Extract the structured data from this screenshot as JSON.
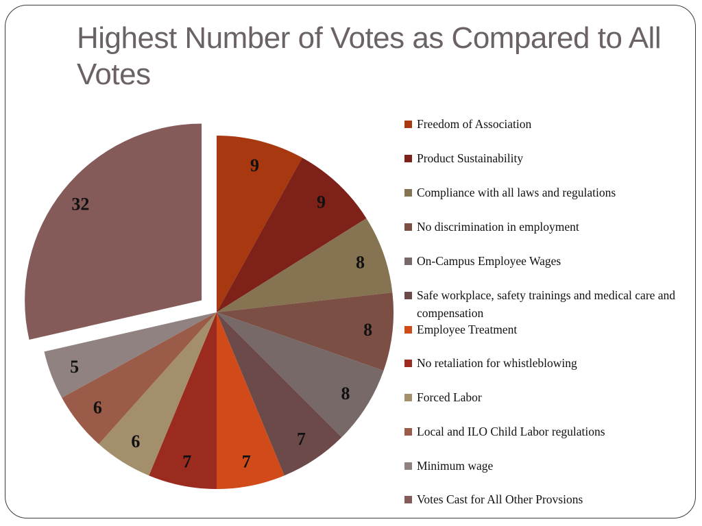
{
  "slide": {
    "title": "Highest Number of Votes as Compared to All Votes"
  },
  "chart_data": {
    "type": "pie",
    "title": "Highest Number of Votes as Compared to All Votes",
    "categories": [
      "Freedom of Association",
      "Product Sustainability",
      "Compliance with all laws and regulations",
      "No discrimination in employment",
      "On-Campus Employee Wages",
      "Safe workplace, safety trainings and medical care and compensation",
      "Employee Treatment",
      "No retaliation for whistleblowing",
      "Forced Labor",
      "Local and ILO Child Labor regulations",
      "Minimum wage",
      "Votes Cast for All Other Provsions"
    ],
    "values": [
      9,
      9,
      8,
      8,
      8,
      7,
      7,
      7,
      6,
      6,
      5,
      32
    ],
    "colors": [
      "#a8380f",
      "#7e2118",
      "#857352",
      "#7b4f44",
      "#766968",
      "#6c4a49",
      "#d14a19",
      "#9b2a1f",
      "#a38f6c",
      "#9a5c49",
      "#8f8280",
      "#855b59"
    ],
    "exploded": [
      "Votes Cast for All Other Provsions"
    ],
    "data_labels": true,
    "legend_position": "right"
  }
}
